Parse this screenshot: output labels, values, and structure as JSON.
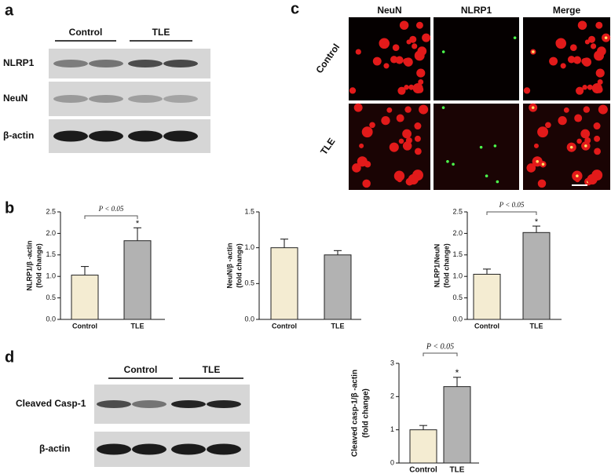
{
  "panel_labels": [
    "a",
    "b",
    "c",
    "d"
  ],
  "blot_a": {
    "groups": [
      "Control",
      "TLE"
    ],
    "rows": [
      "NLRP1",
      "NeuN",
      "β-actin"
    ]
  },
  "images_c": {
    "columns": [
      "NeuN",
      "NLRP1",
      "Merge"
    ],
    "rows": [
      "Control",
      "TLE"
    ]
  },
  "blot_d": {
    "groups": [
      "Control",
      "TLE"
    ],
    "rows": [
      "Cleaved Casp-1",
      "β-actin"
    ]
  },
  "chart_data": [
    {
      "type": "bar",
      "ylabel": [
        "NLRP1/β -actin",
        "(fold change)"
      ],
      "categories": [
        "Control",
        "TLE"
      ],
      "values": [
        1.03,
        1.83
      ],
      "errors": [
        0.2,
        0.3
      ],
      "colors": [
        "#f4ecd2",
        "#b2b2b2"
      ],
      "ylim": [
        0,
        2.5
      ],
      "yticks": [
        {
          "value": 0,
          "label": "0.0"
        },
        {
          "value": 0.5,
          "label": "0.5"
        },
        {
          "value": 1,
          "label": "1.0"
        },
        {
          "value": 1.5,
          "label": "1.5"
        },
        {
          "value": 2,
          "label": "2.0"
        },
        {
          "value": 2.5,
          "label": "2.5"
        }
      ],
      "annotation": "P < 0.05",
      "significance": "*"
    },
    {
      "type": "bar",
      "ylabel": [
        "NeuN/β -actin",
        "(fold change)"
      ],
      "categories": [
        "Control",
        "TLE"
      ],
      "values": [
        1.0,
        0.9
      ],
      "errors": [
        0.12,
        0.06
      ],
      "colors": [
        "#f4ecd2",
        "#b2b2b2"
      ],
      "ylim": [
        0,
        1.5
      ],
      "yticks": [
        {
          "value": 0,
          "label": "0.0"
        },
        {
          "value": 0.5,
          "label": "0.5"
        },
        {
          "value": 1,
          "label": "1.0"
        },
        {
          "value": 1.5,
          "label": "1.5"
        }
      ]
    },
    {
      "type": "bar",
      "ylabel": [
        "NLRP1/NeuN",
        "(fold change)"
      ],
      "categories": [
        "Control",
        "TLE"
      ],
      "values": [
        1.05,
        2.02
      ],
      "errors": [
        0.12,
        0.15
      ],
      "colors": [
        "#f4ecd2",
        "#b2b2b2"
      ],
      "ylim": [
        0,
        2.5
      ],
      "yticks": [
        {
          "value": 0,
          "label": "0.0"
        },
        {
          "value": 0.5,
          "label": "0.5"
        },
        {
          "value": 1,
          "label": "1.0"
        },
        {
          "value": 1.5,
          "label": "1.5"
        },
        {
          "value": 2,
          "label": "2.0"
        },
        {
          "value": 2.5,
          "label": "2.5"
        }
      ],
      "annotation": "P < 0.05",
      "significance": "*"
    },
    {
      "type": "bar",
      "ylabel": [
        "Cleaved casp-1/β -actin",
        "(fold change)"
      ],
      "categories": [
        "Control",
        "TLE"
      ],
      "values": [
        1.0,
        2.3
      ],
      "errors": [
        0.13,
        0.28
      ],
      "colors": [
        "#f4ecd2",
        "#b2b2b2"
      ],
      "ylim": [
        0,
        3
      ],
      "yticks": [
        0,
        1,
        2,
        3
      ],
      "annotation": "P < 0.05",
      "significance": "*"
    }
  ]
}
